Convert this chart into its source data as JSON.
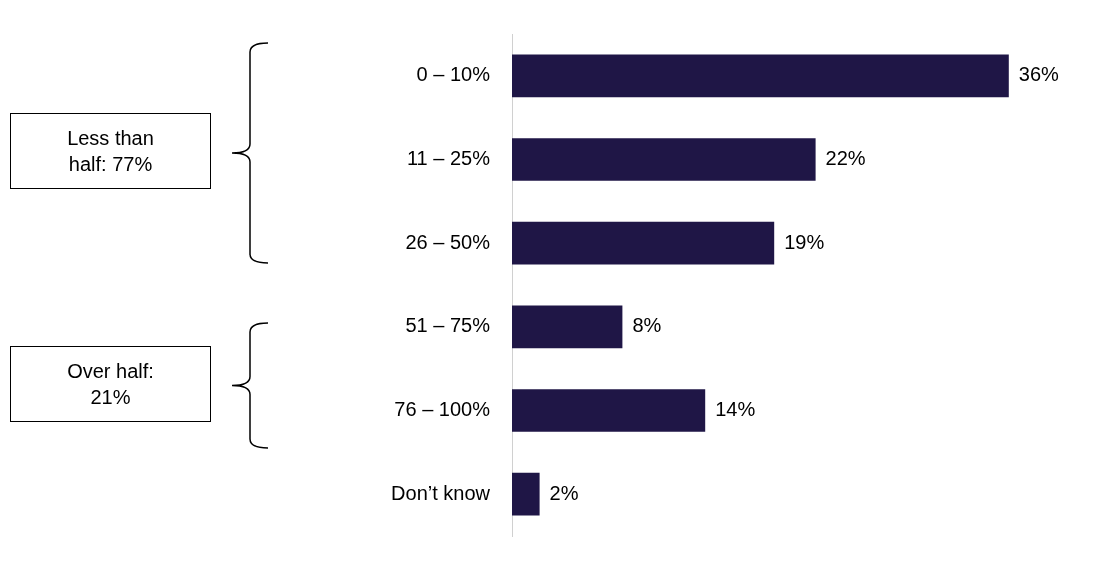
{
  "chart_data": {
    "type": "bar",
    "orientation": "horizontal",
    "categories": [
      "0 – 10%",
      "11 – 25%",
      "26 – 50%",
      "51 – 75%",
      "76 – 100%",
      "Don’t know"
    ],
    "values": [
      36,
      22,
      19,
      8,
      14,
      2
    ],
    "value_labels": [
      "36%",
      "22%",
      "19%",
      "8%",
      "14%",
      "2%"
    ],
    "color": "#1f1646",
    "legend": false,
    "annotations": [
      "Less than half: 77%",
      "Over half: 21%"
    ]
  }
}
